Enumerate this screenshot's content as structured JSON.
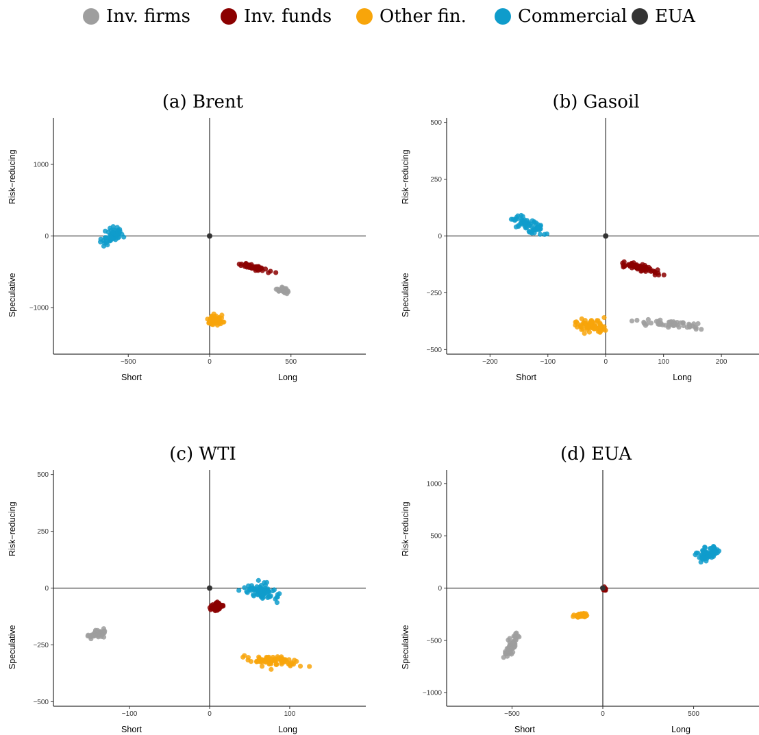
{
  "legend": {
    "items": [
      {
        "label": "Inv. firms",
        "color": "#9E9E9E"
      },
      {
        "label": "Inv. funds",
        "color": "#8B0000"
      },
      {
        "label": "Other fin.",
        "color": "#F8A50A"
      },
      {
        "label": "Commercial",
        "color": "#0F9CCB"
      },
      {
        "label": "EUA",
        "color": "#333333"
      }
    ]
  },
  "axis_labels": {
    "x_left": "Short",
    "x_right": "Long",
    "y_top": "Risk−reducing",
    "y_bottom": "Speculative"
  },
  "chart_data": [
    {
      "type": "scatter",
      "title": "(a) Brent",
      "xlim": [
        -960,
        960
      ],
      "ylim": [
        -1650,
        1650
      ],
      "xticks": [
        -500,
        0,
        500
      ],
      "yticks": [
        -1000,
        0,
        1000
      ],
      "xtick_labels": [
        "−500",
        "0",
        "500"
      ],
      "ytick_labels": [
        "−1000",
        "0",
        "1000"
      ],
      "grid": false,
      "series": [
        {
          "name": "Commercial",
          "color": "#0F9CCB",
          "center": [
            -600,
            0
          ],
          "spread": [
            100,
            200
          ],
          "count": 60,
          "trend": 0.6
        },
        {
          "name": "Inv. funds",
          "color": "#8B0000",
          "center": [
            280,
            -440
          ],
          "spread": [
            130,
            80
          ],
          "count": 55,
          "trend": -0.9
        },
        {
          "name": "Inv. firms",
          "color": "#9E9E9E",
          "center": [
            450,
            -760
          ],
          "spread": [
            55,
            60
          ],
          "count": 40,
          "trend": -0.5
        },
        {
          "name": "Other fin.",
          "color": "#F8A50A",
          "center": [
            30,
            -1180
          ],
          "spread": [
            80,
            110
          ],
          "count": 55,
          "trend": -0.2
        },
        {
          "name": "EUA",
          "color": "#333333",
          "center": [
            0,
            0
          ],
          "spread": [
            0,
            0
          ],
          "count": 1,
          "trend": 0
        }
      ]
    },
    {
      "type": "scatter",
      "title": "(b) Gasoil",
      "xlim": [
        -275,
        265
      ],
      "ylim": [
        -520,
        520
      ],
      "xticks": [
        -200,
        -100,
        0,
        100,
        200
      ],
      "yticks": [
        -500,
        -250,
        0,
        250,
        500
      ],
      "xtick_labels": [
        "−200",
        "−100",
        "0",
        "100",
        "200"
      ],
      "ytick_labels": [
        "−500",
        "−250",
        "0",
        "250",
        "500"
      ],
      "grid": false,
      "series": [
        {
          "name": "Commercial",
          "color": "#0F9CCB",
          "center": [
            -135,
            50
          ],
          "spread": [
            45,
            70
          ],
          "count": 65,
          "trend": -0.7
        },
        {
          "name": "Inv. funds",
          "color": "#8B0000",
          "center": [
            60,
            -140
          ],
          "spread": [
            45,
            35
          ],
          "count": 60,
          "trend": -0.9
        },
        {
          "name": "Inv. firms",
          "color": "#9E9E9E",
          "center": [
            110,
            -385
          ],
          "spread": [
            85,
            30
          ],
          "count": 55,
          "trend": -0.5
        },
        {
          "name": "Other fin.",
          "color": "#F8A50A",
          "center": [
            -25,
            -395
          ],
          "spread": [
            45,
            40
          ],
          "count": 70,
          "trend": 0.1
        },
        {
          "name": "EUA",
          "color": "#333333",
          "center": [
            0,
            0
          ],
          "spread": [
            0,
            0
          ],
          "count": 1,
          "trend": 0
        }
      ]
    },
    {
      "type": "scatter",
      "title": "(c) WTI",
      "xlim": [
        -195,
        195
      ],
      "ylim": [
        -520,
        520
      ],
      "xticks": [
        -100,
        0,
        100
      ],
      "yticks": [
        -500,
        -250,
        0,
        250,
        500
      ],
      "xtick_labels": [
        "−100",
        "0",
        "100"
      ],
      "ytick_labels": [
        "−500",
        "−250",
        "0",
        "250",
        "500"
      ],
      "grid": false,
      "series": [
        {
          "name": "Inv. firms",
          "color": "#9E9E9E",
          "center": [
            -140,
            -200
          ],
          "spread": [
            15,
            30
          ],
          "count": 50,
          "trend": 0.6
        },
        {
          "name": "Inv. funds",
          "color": "#8B0000",
          "center": [
            10,
            -80
          ],
          "spread": [
            10,
            25
          ],
          "count": 60,
          "trend": 0.2
        },
        {
          "name": "Commercial",
          "color": "#0F9CCB",
          "center": [
            65,
            -20
          ],
          "spread": [
            30,
            60
          ],
          "count": 75,
          "trend": -0.3
        },
        {
          "name": "Other fin.",
          "color": "#F8A50A",
          "center": [
            80,
            -320
          ],
          "spread": [
            40,
            40
          ],
          "count": 75,
          "trend": -0.2
        },
        {
          "name": "EUA",
          "color": "#333333",
          "center": [
            0,
            0
          ],
          "spread": [
            0,
            0
          ],
          "count": 1,
          "trend": 0
        }
      ]
    },
    {
      "type": "scatter",
      "title": "(d) EUA",
      "xlim": [
        -860,
        860
      ],
      "ylim": [
        -1130,
        1130
      ],
      "xticks": [
        -500,
        0,
        500
      ],
      "yticks": [
        -1000,
        -500,
        0,
        500,
        1000
      ],
      "xtick_labels": [
        "−500",
        "0",
        "500"
      ],
      "ytick_labels": [
        "−1000",
        "−500",
        "0",
        "500",
        "1000"
      ],
      "grid": false,
      "series": [
        {
          "name": "Commercial",
          "color": "#0F9CCB",
          "center": [
            580,
            330
          ],
          "spread": [
            90,
            130
          ],
          "count": 60,
          "trend": 0.5
        },
        {
          "name": "Inv. funds",
          "color": "#8B0000",
          "center": [
            10,
            -10
          ],
          "spread": [
            8,
            20
          ],
          "count": 25,
          "trend": 0
        },
        {
          "name": "Other fin.",
          "color": "#F8A50A",
          "center": [
            -120,
            -260
          ],
          "spread": [
            60,
            30
          ],
          "count": 45,
          "trend": 0.2
        },
        {
          "name": "Inv. firms",
          "color": "#9E9E9E",
          "center": [
            -500,
            -550
          ],
          "spread": [
            50,
            180
          ],
          "count": 55,
          "trend": 0.8
        },
        {
          "name": "EUA",
          "color": "#333333",
          "center": [
            0,
            0
          ],
          "spread": [
            0,
            0
          ],
          "count": 1,
          "trend": 0
        }
      ]
    }
  ]
}
